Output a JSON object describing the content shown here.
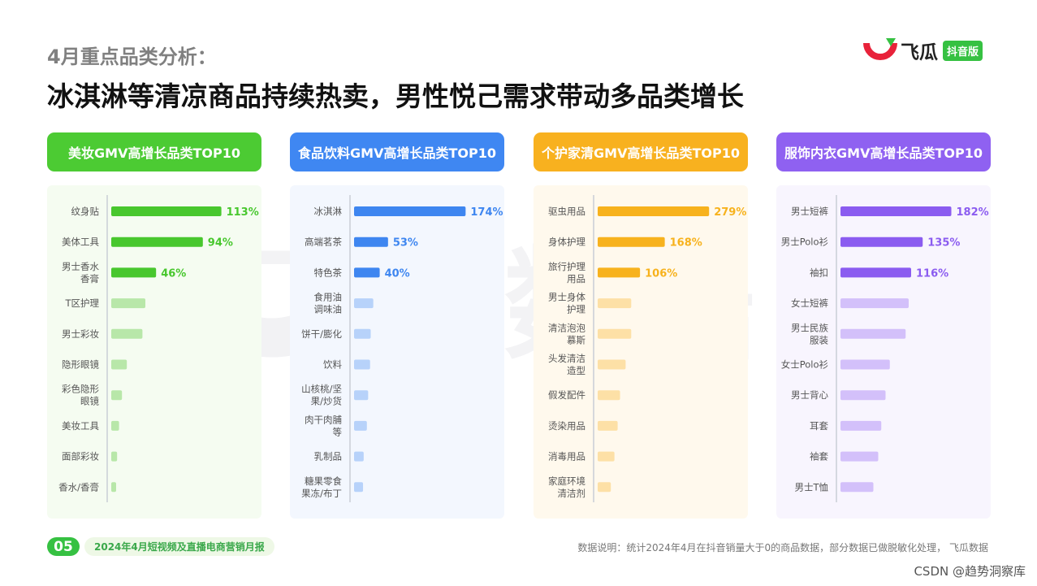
{
  "header": {
    "subtitle": "4月重点品类分析：",
    "title": "冰淇淋等清凉商品持续热卖，男性悦己需求带动多品类增长"
  },
  "logo": {
    "name": "飞瓜",
    "badge": "抖音版",
    "icon": "feigua-logo-icon",
    "colors": {
      "red": "#e8223a",
      "green": "#36c142"
    }
  },
  "watermark": "飞瓜数据",
  "chart_data": [
    {
      "type": "bar",
      "orientation": "horizontal",
      "title": "美妆GMV高增长品类TOP10",
      "color": "#48c72e",
      "light_color": "#b8e7a9",
      "header_color": "#4ccb33",
      "bg_color": "#f5fcf1",
      "categories": [
        "纹身贴",
        "美体工具",
        "男士香水香膏",
        "T区护理",
        "男士彩妆",
        "隐形眼镜",
        "彩色隐形眼镜",
        "美妆工具",
        "面部彩妆",
        "香水/香膏"
      ],
      "category_lines": [
        [
          "纹身贴"
        ],
        [
          "美体工具"
        ],
        [
          "男士香水",
          "香膏"
        ],
        [
          "T区护理"
        ],
        [
          "男士彩妆"
        ],
        [
          "隐形眼镜"
        ],
        [
          "彩色隐形",
          "眼镜"
        ],
        [
          "美妆工具"
        ],
        [
          "面部彩妆"
        ],
        [
          "香水/香膏"
        ]
      ],
      "values": [
        113,
        94,
        46,
        35,
        32,
        16,
        11,
        8,
        6,
        5
      ],
      "labels": [
        "113%",
        "94%",
        "46%",
        "",
        "",
        "",
        "",
        "",
        "",
        ""
      ],
      "xlim": [
        0,
        125
      ]
    },
    {
      "type": "bar",
      "orientation": "horizontal",
      "title": "食品饮料GMV高增长品类TOP10",
      "color": "#3e86f0",
      "light_color": "#b7d2fa",
      "header_color": "#3f87f2",
      "bg_color": "#f3f7fe",
      "categories": [
        "冰淇淋",
        "高端茗茶",
        "特色茶",
        "食用油调味油",
        "饼干/膨化",
        "饮料",
        "山核桃/坚果/炒货",
        "肉干肉脯等",
        "乳制品",
        "糖果零食果冻/布丁"
      ],
      "category_lines": [
        [
          "冰淇淋"
        ],
        [
          "高端茗茶"
        ],
        [
          "特色茶"
        ],
        [
          "食用油",
          "调味油"
        ],
        [
          "饼干/膨化"
        ],
        [
          "饮料"
        ],
        [
          "山核桃/坚",
          "果/炒货"
        ],
        [
          "肉干肉脯",
          "等"
        ],
        [
          "乳制品"
        ],
        [
          "糖果零食",
          "果冻/布丁"
        ]
      ],
      "values": [
        174,
        53,
        40,
        30,
        26,
        25,
        22,
        20,
        15,
        14
      ],
      "labels": [
        "174%",
        "53%",
        "40%",
        "",
        "",
        "",
        "",
        "",
        "",
        ""
      ],
      "xlim": [
        0,
        190
      ]
    },
    {
      "type": "bar",
      "orientation": "horizontal",
      "title": "个护家清GMV高增长品类TOP10",
      "color": "#f7b21d",
      "light_color": "#fde0a6",
      "header_color": "#f8b11f",
      "bg_color": "#fff9ed",
      "categories": [
        "驱虫用品",
        "身体护理",
        "旅行护理用品",
        "男士身体护理",
        "清洁泡泡慕斯",
        "头发清洁造型",
        "假发配件",
        "烫染用品",
        "消毒用品",
        "家庭环境清洁剂"
      ],
      "category_lines": [
        [
          "驱虫用品"
        ],
        [
          "身体护理"
        ],
        [
          "旅行护理",
          "用品"
        ],
        [
          "男士身体",
          "护理"
        ],
        [
          "清洁泡泡",
          "慕斯"
        ],
        [
          "头发清洁",
          "造型"
        ],
        [
          "假发配件"
        ],
        [
          "烫染用品"
        ],
        [
          "消毒用品"
        ],
        [
          "家庭环境",
          "清洁剂"
        ]
      ],
      "values": [
        279,
        168,
        106,
        84,
        84,
        70,
        56,
        50,
        42,
        33
      ],
      "labels": [
        "279%",
        "168%",
        "106%",
        "",
        "",
        "",
        "",
        "",
        "",
        ""
      ],
      "xlim": [
        0,
        305
      ]
    },
    {
      "type": "bar",
      "orientation": "horizontal",
      "title": "服饰内衣GMV高增长品类TOP10",
      "color": "#8b5cf0",
      "light_color": "#d3c0fa",
      "header_color": "#8f61f1",
      "bg_color": "#f8f5fe",
      "categories": [
        "男士短裤",
        "男士Polo衫",
        "袖扣",
        "女士短裤",
        "男士民族服装",
        "女士Polo衫",
        "男士背心",
        "耳套",
        "袖套",
        "男士T恤"
      ],
      "category_lines": [
        [
          "男士短裤"
        ],
        [
          "男士Polo衫"
        ],
        [
          "袖扣"
        ],
        [
          "女士短裤"
        ],
        [
          "男士民族",
          "服装"
        ],
        [
          "女士Polo衫"
        ],
        [
          "男士背心"
        ],
        [
          "耳套"
        ],
        [
          "袖套"
        ],
        [
          "男士T恤"
        ]
      ],
      "values": [
        182,
        135,
        116,
        112,
        107,
        81,
        74,
        67,
        62,
        54
      ],
      "labels": [
        "182%",
        "135%",
        "116%",
        "",
        "",
        "",
        "",
        "",
        "",
        ""
      ],
      "xlim": [
        0,
        200
      ]
    }
  ],
  "footer": {
    "page_number": "05",
    "report_title": "2024年4月短视频及直播电商营销月报",
    "note": "数据说明：统计2024年4月在抖音销量大于0的商品数据，部分数据已做脱敏化处理， 飞瓜数据",
    "credit": "CSDN @趋势洞察库"
  }
}
